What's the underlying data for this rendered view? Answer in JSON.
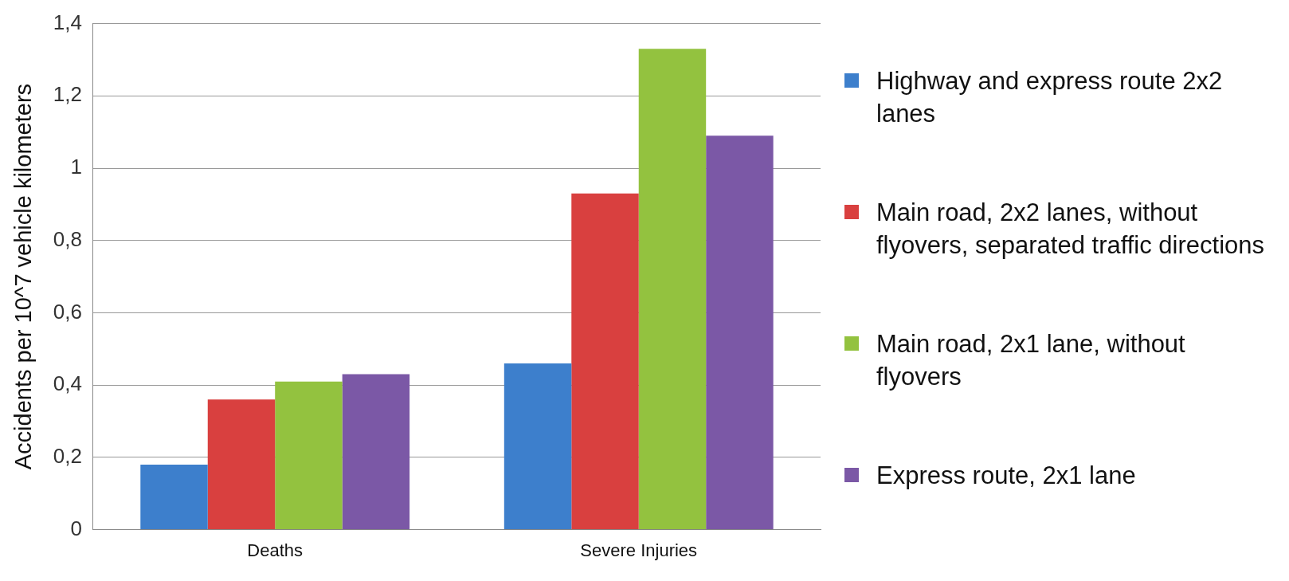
{
  "chart_data": {
    "type": "bar",
    "ylabel": "Accidents per 10^7 vehicle kilometers",
    "categories": [
      "Deaths",
      "Severe Injuries"
    ],
    "series": [
      {
        "name": "Highway and express route 2x2 lanes",
        "color": "#3d7fcc",
        "values": [
          0.18,
          0.46
        ]
      },
      {
        "name": "Main road, 2x2 lanes, without flyovers, separated traffic directions",
        "color": "#d9403f",
        "values": [
          0.36,
          0.93
        ]
      },
      {
        "name": "Main road, 2x1 lane, without flyovers",
        "color": "#93c23f",
        "values": [
          0.41,
          1.33
        ]
      },
      {
        "name": "Express route, 2x1 lane",
        "color": "#7b58a6",
        "values": [
          0.43,
          1.09
        ]
      }
    ],
    "ylim": [
      0,
      1.4
    ],
    "yticks": [
      0,
      {
        "value": 0.2,
        "label": "0,2"
      },
      {
        "value": 0.4,
        "label": "0,4"
      },
      {
        "value": 0.6,
        "label": "0,6"
      },
      {
        "value": 0.8,
        "label": "0,8"
      },
      1,
      {
        "value": 1.2,
        "label": "1,2"
      },
      {
        "value": 1.4,
        "label": "1,4"
      }
    ],
    "grid": "y",
    "legend": "right"
  }
}
